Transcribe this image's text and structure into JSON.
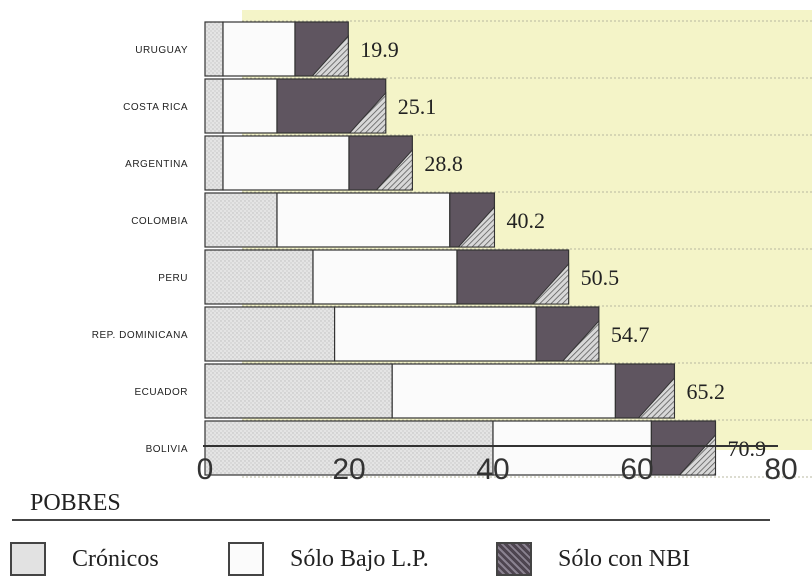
{
  "chart_data": {
    "type": "bar",
    "orientation": "horizontal",
    "stacked": true,
    "categories": [
      "URUGUAY",
      "COSTA RICA",
      "ARGENTINA",
      "COLOMBIA",
      "PERU",
      "REP. DOMINICANA",
      "ECUADOR",
      "BOLIVIA"
    ],
    "series": [
      {
        "name": "Crónicos",
        "values": [
          2.5,
          2.5,
          2.5,
          10,
          15,
          18,
          26,
          40
        ]
      },
      {
        "name": "Sólo Bajo L.P.",
        "values": [
          10,
          7.5,
          17.5,
          24,
          20,
          28,
          31,
          22
        ]
      },
      {
        "name": "Sólo con NBI",
        "values": [
          7.4,
          15.1,
          8.8,
          6.2,
          15.5,
          8.7,
          8.2,
          8.9
        ]
      }
    ],
    "totals": [
      "19.9",
      "25.1",
      "28.8",
      "40.2",
      "50.5",
      "54.7",
      "65.2",
      "70.9"
    ],
    "xlim": [
      0,
      80
    ],
    "xticks": [
      0,
      20,
      40,
      60,
      80
    ],
    "grid": true,
    "legend": {
      "title": "POBRES",
      "placement": "bottom",
      "items": [
        "Crónicos",
        "Sólo Bajo L.P.",
        "Sólo con NBI"
      ]
    },
    "colors": {
      "cronicos": "#e2e2e2",
      "bajo_lp": "#fbfbfb",
      "nbi": "#5f5560",
      "plot_bg": "#f4f4c8",
      "grid": "#b8b8a0"
    }
  }
}
